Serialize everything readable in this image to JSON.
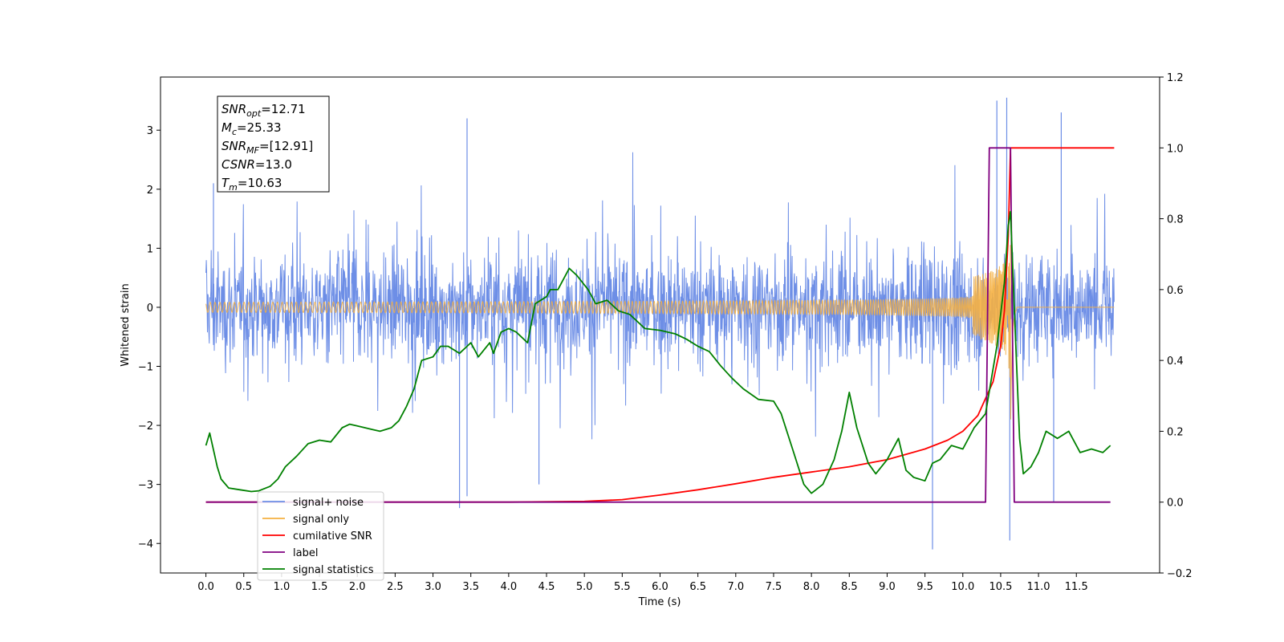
{
  "chart_data": {
    "type": "line",
    "xlabel": "Time (s)",
    "ylabel": "Whitened strain",
    "xlim": [
      -0.6,
      12.6
    ],
    "ylim": [
      -4.5,
      3.9
    ],
    "y2lim": [
      -0.2,
      1.2
    ],
    "xticks": [
      "0.0",
      "0.5",
      "1.0",
      "1.5",
      "2.0",
      "2.5",
      "3.0",
      "3.5",
      "4.0",
      "4.5",
      "5.0",
      "5.5",
      "6.0",
      "6.5",
      "7.0",
      "7.5",
      "8.0",
      "8.5",
      "9.0",
      "9.5",
      "10.0",
      "10.5",
      "11.0",
      "11.5"
    ],
    "yticks": [
      "−4",
      "−3",
      "−2",
      "−1",
      "0",
      "1",
      "2",
      "3"
    ],
    "y2ticks": [
      "−0.2",
      "0.0",
      "0.2",
      "0.4",
      "0.6",
      "0.8",
      "1.0",
      "1.2"
    ],
    "legend_position": "lower-left",
    "annotation": [
      {
        "base": "SNR",
        "sub": "opt",
        "value": "=12.71"
      },
      {
        "base": "M",
        "sub": "c",
        "value": "=25.33"
      },
      {
        "base": "SNR",
        "sub": "MF",
        "value": "=[12.91]"
      },
      {
        "base": "CSNR",
        "sub": "",
        "value": "=13.0"
      },
      {
        "base": "T",
        "sub": "m",
        "value": "=10.63"
      }
    ],
    "series": [
      {
        "name": "signal+ noise",
        "color": "#6d8ee6",
        "axis": "left",
        "kind": "noise",
        "time_range": [
          0.0,
          12.0
        ],
        "envelope_typical": [
          -1.5,
          1.5
        ],
        "peaks": [
          [
            0.1,
            2.1
          ],
          [
            3.45,
            3.2
          ],
          [
            3.35,
            -3.4
          ],
          [
            3.45,
            -3.2
          ],
          [
            4.4,
            -3.0
          ],
          [
            9.6,
            -4.1
          ],
          [
            10.45,
            3.5
          ],
          [
            10.62,
            -3.95
          ],
          [
            11.2,
            -3.3
          ],
          [
            11.3,
            3.3
          ],
          [
            10.58,
            3.55
          ]
        ]
      },
      {
        "name": "signal only",
        "color": "#f5b041",
        "axis": "left",
        "kind": "chirp",
        "merger_time": 10.63,
        "peak_amplitude": 1.4
      },
      {
        "name": "cumilative SNR",
        "color": "#ff0000",
        "axis": "right",
        "points": [
          [
            0.0,
            0.0
          ],
          [
            4.0,
            0.0
          ],
          [
            5.0,
            0.002
          ],
          [
            5.5,
            0.007
          ],
          [
            6.0,
            0.02
          ],
          [
            6.5,
            0.035
          ],
          [
            7.0,
            0.052
          ],
          [
            7.5,
            0.07
          ],
          [
            8.0,
            0.085
          ],
          [
            8.5,
            0.1
          ],
          [
            9.0,
            0.12
          ],
          [
            9.5,
            0.15
          ],
          [
            9.8,
            0.175
          ],
          [
            10.0,
            0.2
          ],
          [
            10.2,
            0.245
          ],
          [
            10.4,
            0.34
          ],
          [
            10.5,
            0.44
          ],
          [
            10.55,
            0.54
          ],
          [
            10.6,
            0.75
          ],
          [
            10.63,
            1.0
          ],
          [
            12.0,
            1.0
          ]
        ]
      },
      {
        "name": "label",
        "color": "#800080",
        "axis": "right",
        "points": [
          [
            0.0,
            0.0
          ],
          [
            10.3,
            0.0
          ],
          [
            10.35,
            1.0
          ],
          [
            10.63,
            1.0
          ],
          [
            10.68,
            0.0
          ],
          [
            11.95,
            0.0
          ]
        ]
      },
      {
        "name": "signal statistics",
        "color": "#008000",
        "axis": "right",
        "points": [
          [
            0.0,
            0.16
          ],
          [
            0.05,
            0.195
          ],
          [
            0.15,
            0.1
          ],
          [
            0.2,
            0.065
          ],
          [
            0.3,
            0.04
          ],
          [
            0.45,
            0.035
          ],
          [
            0.6,
            0.03
          ],
          [
            0.7,
            0.032
          ],
          [
            0.85,
            0.045
          ],
          [
            0.95,
            0.065
          ],
          [
            1.05,
            0.1
          ],
          [
            1.2,
            0.13
          ],
          [
            1.35,
            0.165
          ],
          [
            1.5,
            0.175
          ],
          [
            1.65,
            0.17
          ],
          [
            1.8,
            0.21
          ],
          [
            1.9,
            0.22
          ],
          [
            2.0,
            0.215
          ],
          [
            2.2,
            0.205
          ],
          [
            2.3,
            0.2
          ],
          [
            2.45,
            0.21
          ],
          [
            2.55,
            0.23
          ],
          [
            2.65,
            0.27
          ],
          [
            2.75,
            0.32
          ],
          [
            2.85,
            0.4
          ],
          [
            3.0,
            0.41
          ],
          [
            3.1,
            0.44
          ],
          [
            3.2,
            0.44
          ],
          [
            3.35,
            0.42
          ],
          [
            3.5,
            0.45
          ],
          [
            3.6,
            0.41
          ],
          [
            3.75,
            0.45
          ],
          [
            3.8,
            0.42
          ],
          [
            3.9,
            0.48
          ],
          [
            4.0,
            0.49
          ],
          [
            4.1,
            0.48
          ],
          [
            4.25,
            0.45
          ],
          [
            4.35,
            0.56
          ],
          [
            4.5,
            0.58
          ],
          [
            4.55,
            0.6
          ],
          [
            4.65,
            0.6
          ],
          [
            4.8,
            0.66
          ],
          [
            4.9,
            0.64
          ],
          [
            5.05,
            0.6
          ],
          [
            5.15,
            0.56
          ],
          [
            5.3,
            0.57
          ],
          [
            5.45,
            0.54
          ],
          [
            5.6,
            0.53
          ],
          [
            5.8,
            0.49
          ],
          [
            6.0,
            0.485
          ],
          [
            6.2,
            0.475
          ],
          [
            6.35,
            0.46
          ],
          [
            6.5,
            0.44
          ],
          [
            6.65,
            0.425
          ],
          [
            6.8,
            0.385
          ],
          [
            6.95,
            0.35
          ],
          [
            7.1,
            0.32
          ],
          [
            7.3,
            0.29
          ],
          [
            7.5,
            0.285
          ],
          [
            7.6,
            0.25
          ],
          [
            7.75,
            0.15
          ],
          [
            7.9,
            0.05
          ],
          [
            8.0,
            0.025
          ],
          [
            8.15,
            0.05
          ],
          [
            8.3,
            0.12
          ],
          [
            8.4,
            0.2
          ],
          [
            8.5,
            0.31
          ],
          [
            8.6,
            0.21
          ],
          [
            8.75,
            0.11
          ],
          [
            8.85,
            0.08
          ],
          [
            9.0,
            0.12
          ],
          [
            9.15,
            0.18
          ],
          [
            9.25,
            0.09
          ],
          [
            9.35,
            0.07
          ],
          [
            9.5,
            0.06
          ],
          [
            9.6,
            0.11
          ],
          [
            9.7,
            0.12
          ],
          [
            9.85,
            0.16
          ],
          [
            10.0,
            0.15
          ],
          [
            10.15,
            0.21
          ],
          [
            10.3,
            0.25
          ],
          [
            10.45,
            0.44
          ],
          [
            10.55,
            0.62
          ],
          [
            10.6,
            0.78
          ],
          [
            10.63,
            0.82
          ],
          [
            10.68,
            0.55
          ],
          [
            10.75,
            0.18
          ],
          [
            10.8,
            0.08
          ],
          [
            10.9,
            0.1
          ],
          [
            11.0,
            0.14
          ],
          [
            11.1,
            0.2
          ],
          [
            11.25,
            0.18
          ],
          [
            11.4,
            0.2
          ],
          [
            11.55,
            0.14
          ],
          [
            11.7,
            0.15
          ],
          [
            11.85,
            0.14
          ],
          [
            11.95,
            0.16
          ]
        ]
      }
    ]
  }
}
